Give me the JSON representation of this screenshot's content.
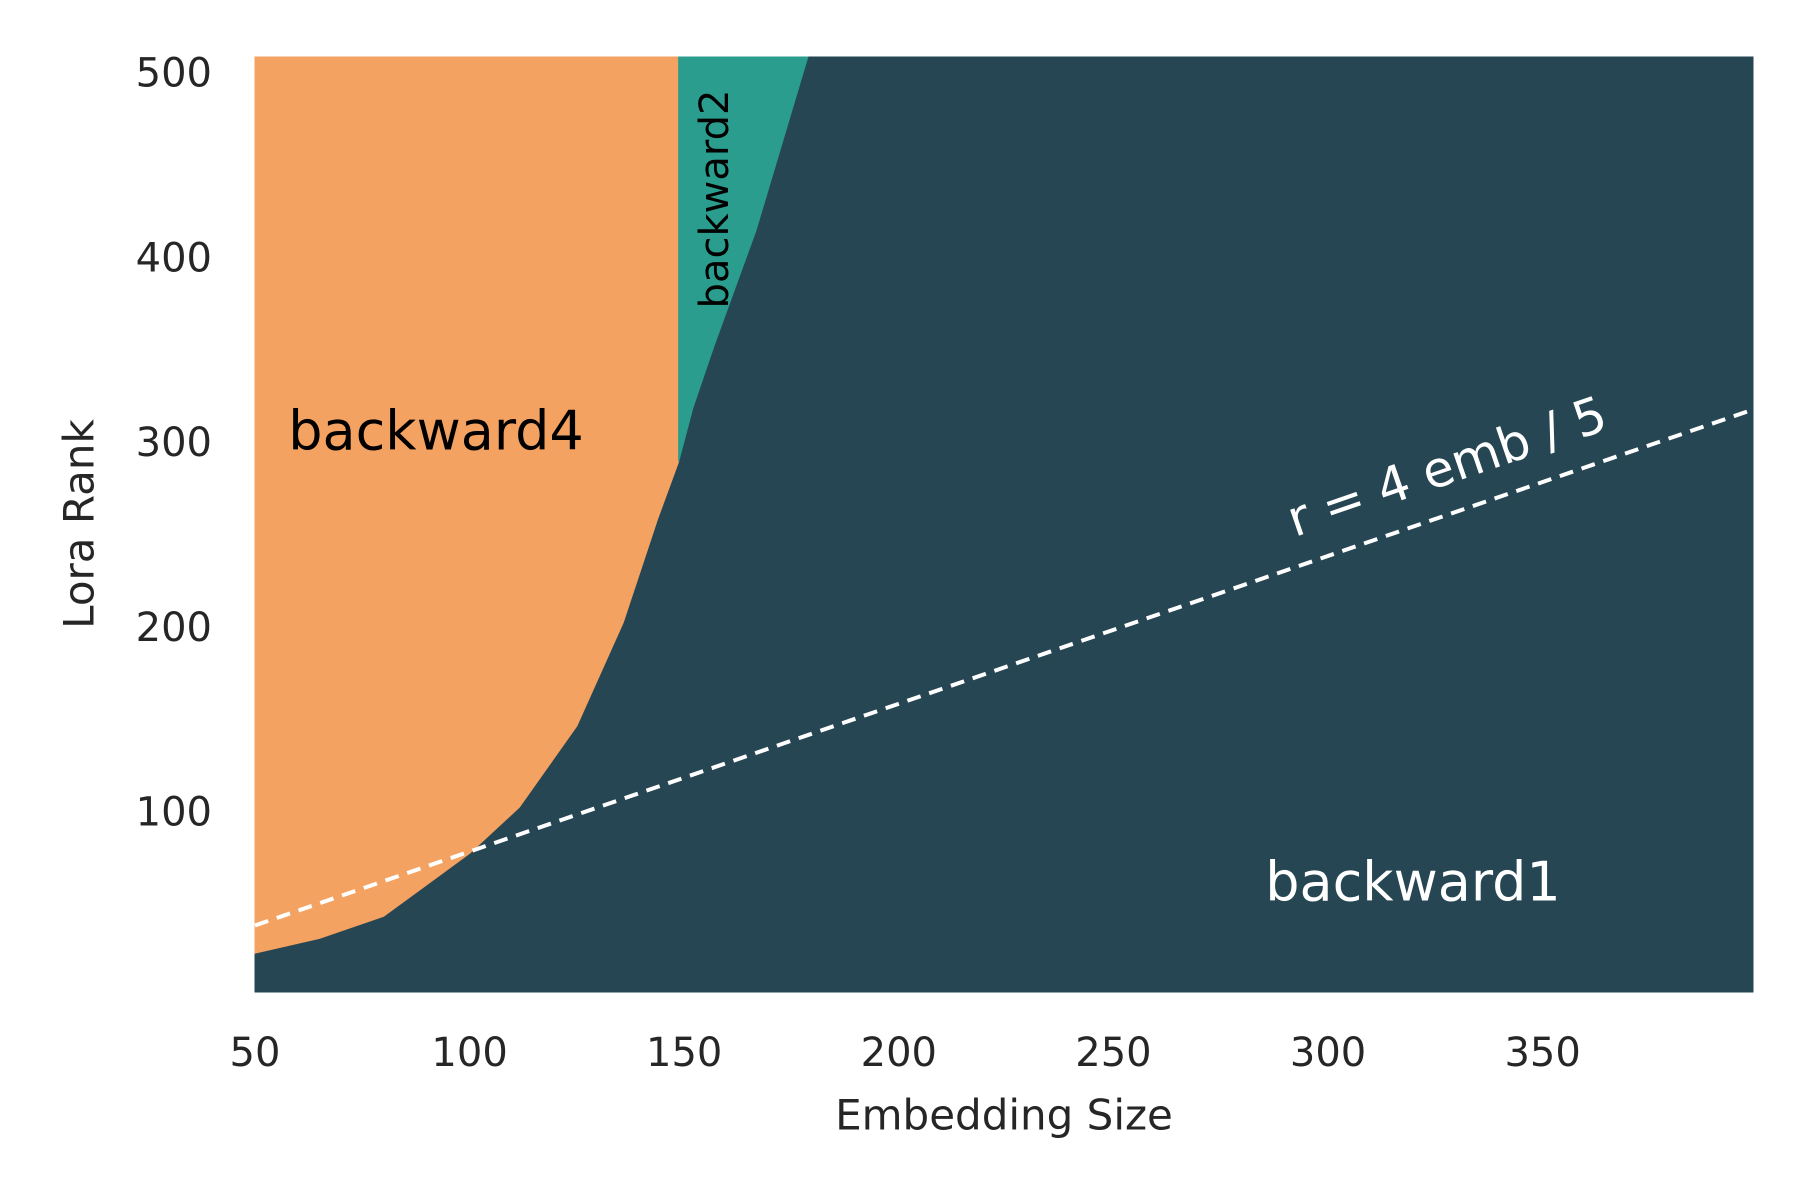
{
  "chart_data": {
    "type": "region",
    "x_label": "Embedding Size",
    "y_label": "Lora Rank",
    "xlim": [
      50,
      399
    ],
    "ylim": [
      4,
      510
    ],
    "xticks": [
      50,
      100,
      150,
      200,
      250,
      300,
      350
    ],
    "yticks": [
      100,
      200,
      300,
      400,
      500
    ],
    "regions": [
      {
        "name": "backward1",
        "color": "#264653",
        "label_color": "#ffffff",
        "x": [
          50,
          399,
          399,
          178.8,
          166.7,
          157,
          152,
          148.7,
          143.8,
          135.8,
          125,
          111.6,
          100,
          80,
          65,
          50
        ],
        "y": [
          4,
          4,
          510,
          510,
          416,
          354,
          320,
          291,
          260,
          204,
          148,
          104,
          79,
          45,
          33,
          25
        ]
      },
      {
        "name": "backward4",
        "color": "#f4a261",
        "label_color": "#000000",
        "x": [
          50,
          65,
          80,
          100,
          111.6,
          125,
          135.8,
          143.8,
          148.7,
          148.7,
          50
        ],
        "y": [
          25,
          33,
          45,
          79,
          104,
          148,
          204,
          260,
          291,
          510,
          510
        ]
      },
      {
        "name": "backward2",
        "color": "#2a9d8f",
        "label_color": "#000000",
        "x": [
          148.7,
          152,
          157,
          166.7,
          178.8,
          148.7
        ],
        "y": [
          291,
          320,
          354,
          416,
          510,
          510
        ]
      }
    ],
    "line": {
      "label": "r = 4 emb / 5",
      "color": "#ffffff",
      "x": [
        50,
        399
      ],
      "y": [
        40,
        319.2
      ]
    }
  }
}
